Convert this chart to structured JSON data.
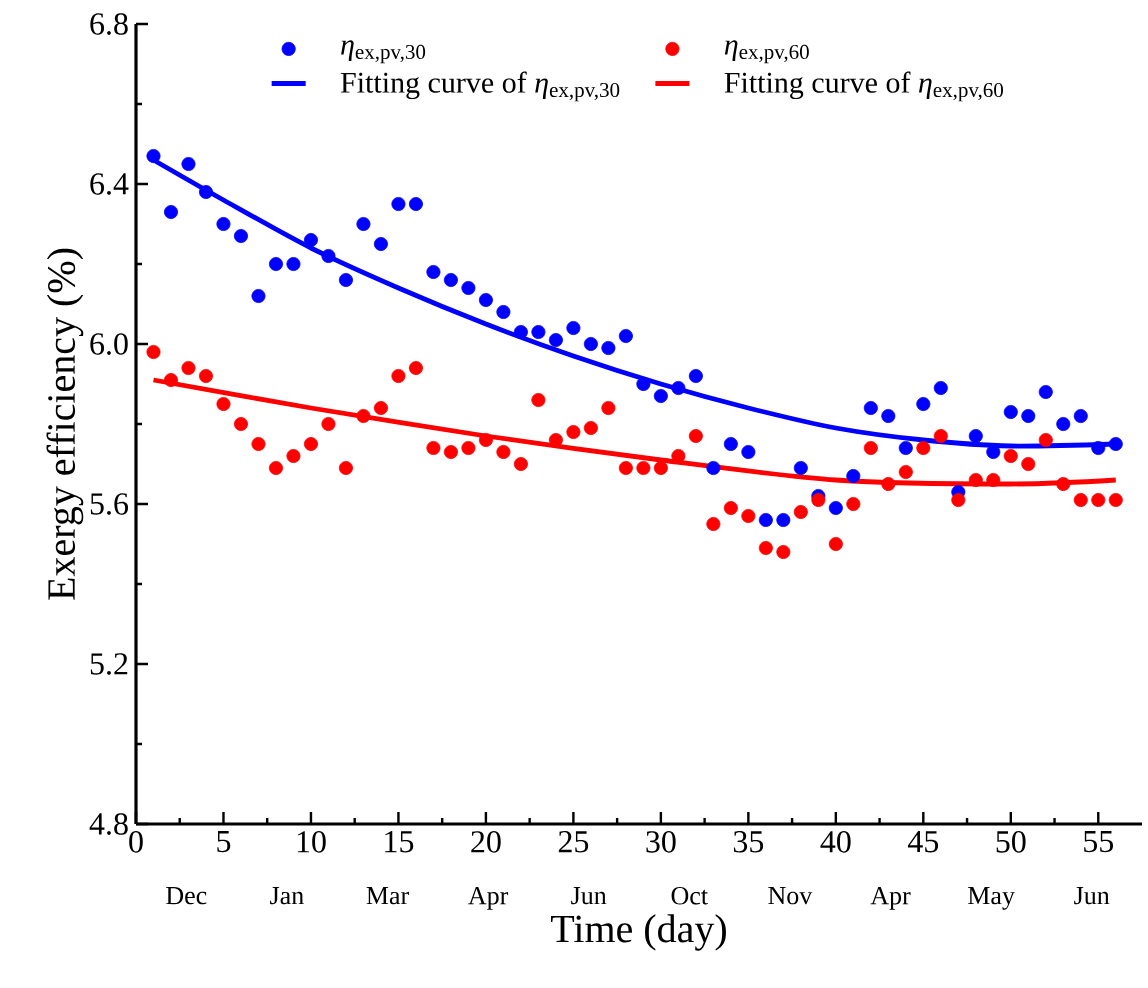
{
  "chart_data": {
    "type": "scatter",
    "xlabel": "Time (day)",
    "ylabel": "Exergy efficiency (%)",
    "xlim": [
      0,
      57.5
    ],
    "ylim": [
      4.8,
      6.8
    ],
    "xticks": [
      0,
      5,
      10,
      15,
      20,
      25,
      30,
      35,
      40,
      45,
      50,
      55
    ],
    "yticks": [
      4.8,
      5.2,
      5.6,
      {
        "value": 6,
        "label": "6.0"
      },
      6.4,
      6.8
    ],
    "annotations": [
      "Dec",
      "Jan",
      "Mar",
      "Apr",
      "Jun",
      "Oct",
      "Nov",
      "Apr",
      "May",
      "Jun"
    ],
    "legend": "top",
    "marker": "circle",
    "grid": false,
    "series": [
      {
        "name": "*η*$_{ex,pv,30}$",
        "color": "#0000ff",
        "x": [
          1,
          2,
          3,
          4,
          5,
          6,
          7,
          8,
          9,
          10,
          11,
          12,
          13,
          14,
          15,
          16,
          17,
          18,
          19,
          20,
          21,
          22,
          23,
          24,
          25,
          26,
          27,
          28,
          29,
          30,
          31,
          32,
          33,
          34,
          35,
          36,
          37,
          38,
          39,
          40,
          41,
          42,
          43,
          44,
          45,
          46,
          47,
          48,
          49,
          50,
          51,
          52,
          53,
          54,
          55,
          56
        ],
        "values": [
          6.47,
          6.33,
          6.45,
          6.38,
          6.3,
          6.27,
          6.12,
          6.2,
          6.2,
          6.26,
          6.22,
          6.16,
          6.3,
          6.25,
          6.35,
          6.35,
          6.18,
          6.16,
          6.14,
          6.11,
          6.08,
          6.03,
          6.03,
          6.01,
          6.04,
          6.0,
          5.99,
          6.02,
          5.9,
          5.87,
          5.89,
          5.92,
          5.69,
          5.75,
          5.73,
          5.56,
          5.56,
          5.69,
          5.62,
          5.59,
          5.67,
          5.84,
          5.82,
          5.74,
          5.85,
          5.89,
          5.63,
          5.77,
          5.73,
          5.83,
          5.82,
          5.88,
          5.8,
          5.82,
          5.74,
          5.75
        ]
      },
      {
        "name": "*η*$_{ex,pv,60}$",
        "color": "#ff0000",
        "x": [
          1,
          2,
          3,
          4,
          5,
          6,
          7,
          8,
          9,
          10,
          11,
          12,
          13,
          14,
          15,
          16,
          17,
          18,
          19,
          20,
          21,
          22,
          23,
          24,
          25,
          26,
          27,
          28,
          29,
          30,
          31,
          32,
          33,
          34,
          35,
          36,
          37,
          38,
          39,
          40,
          41,
          42,
          43,
          44,
          45,
          46,
          47,
          48,
          49,
          50,
          51,
          52,
          53,
          54,
          55,
          56
        ],
        "values": [
          5.98,
          5.91,
          5.94,
          5.92,
          5.85,
          5.8,
          5.75,
          5.69,
          5.72,
          5.75,
          5.8,
          5.69,
          5.82,
          5.84,
          5.92,
          5.94,
          5.74,
          5.73,
          5.74,
          5.76,
          5.73,
          5.7,
          5.86,
          5.76,
          5.78,
          5.79,
          5.84,
          5.69,
          5.69,
          5.69,
          5.72,
          5.77,
          5.55,
          5.59,
          5.57,
          5.49,
          5.48,
          5.58,
          5.61,
          5.5,
          5.6,
          5.74,
          5.65,
          5.68,
          5.74,
          5.77,
          5.61,
          5.66,
          5.66,
          5.72,
          5.7,
          5.76,
          5.65,
          5.61,
          5.61,
          5.61
        ]
      },
      {
        "name": "Fitting curve of *η*$_{ex,pv,30}$",
        "type": "line",
        "marker": "none",
        "color": "#0000ff",
        "x": [
          1,
          5,
          10,
          15,
          20,
          25,
          30,
          35,
          40,
          45,
          50,
          56
        ],
        "values": [
          6.46,
          6.36,
          6.24,
          6.14,
          6.05,
          5.97,
          5.9,
          5.84,
          5.79,
          5.76,
          5.745,
          5.75
        ]
      },
      {
        "name": "Fitting curve of *η*$_{ex,pv,60}$",
        "type": "line",
        "marker": "none",
        "color": "#ff0000",
        "x": [
          1,
          10,
          20,
          30,
          40,
          50,
          56
        ],
        "values": [
          5.91,
          5.84,
          5.77,
          5.71,
          5.66,
          5.65,
          5.66
        ]
      }
    ]
  }
}
